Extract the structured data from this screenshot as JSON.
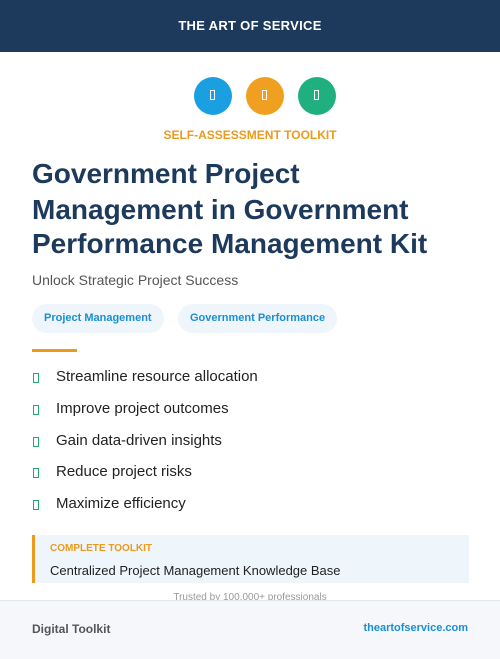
{
  "header": {
    "brand": "THE ART OF SERVICE"
  },
  "label": "SELF-ASSESSMENT TOOLKIT",
  "title_lines": [
    "Government Project",
    "Management in Government",
    "Performance Management Kit"
  ],
  "subtitle": "Unlock Strategic Project Success",
  "tags": [
    "Project Management",
    "Government Performance"
  ],
  "features": [
    "Streamline resource allocation",
    "Improve project outcomes",
    "Gain data-driven insights",
    "Reduce project risks",
    "Maximize efficiency"
  ],
  "callout": {
    "label": "COMPLETE TOOLKIT",
    "text": "Centralized Project Management Knowledge Base"
  },
  "trust_note": "Trusted by 100,000+ professionals",
  "footer": {
    "left": "Digital Toolkit",
    "right": "theartofservice.com"
  }
}
